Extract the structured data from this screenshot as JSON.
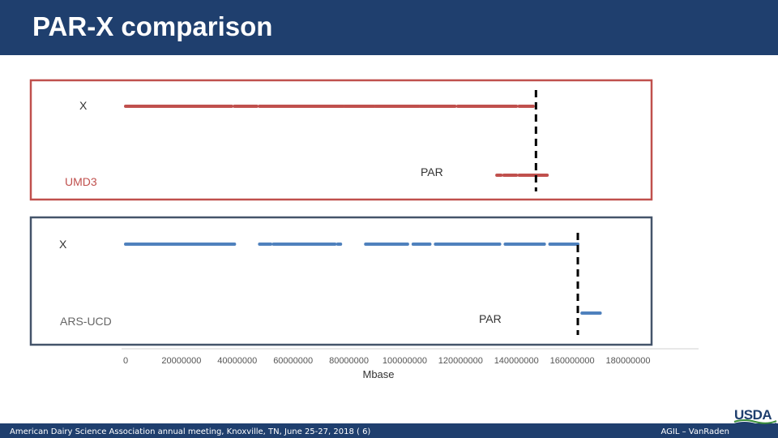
{
  "header": {
    "title": "PAR-X comparison"
  },
  "footer": {
    "left_text": "American Dairy Science Association annual meeting, Knoxville, TN, June 25-27, 2018 (   6)",
    "right_text": "AGIL – VanRaden"
  },
  "logo": {
    "text": "USDA"
  },
  "colors": {
    "umd3": "#c0504d",
    "ars": "#4f81bd",
    "title_bar": "#1f3f6e"
  },
  "chart_data": [
    {
      "type": "scatter",
      "panel_label": "UMD3",
      "x_unit_label": "",
      "series": [
        {
          "name": "X",
          "segments": [
            [
              0,
              38000000
            ],
            [
              39000000,
              47000000
            ],
            [
              48000000,
              78000000
            ],
            [
              78500000,
              89000000
            ],
            [
              89500000,
              105000000
            ],
            [
              105500000,
              118000000
            ],
            [
              119000000,
              140000000
            ],
            [
              141000000,
              146000000
            ]
          ]
        },
        {
          "name": "PAR",
          "segments": [
            [
              133000000,
              134500000
            ],
            [
              135500000,
              140000000
            ],
            [
              141000000,
              146000000
            ],
            [
              146000000,
              151000000
            ]
          ]
        }
      ],
      "boundary_x": 147000000
    },
    {
      "type": "scatter",
      "panel_label": "ARS-UCD",
      "series": [
        {
          "name": "X",
          "segments": [
            [
              0,
              39000000
            ],
            [
              48000000,
              52000000
            ],
            [
              53000000,
              75000000
            ],
            [
              76000000,
              77000000
            ],
            [
              86000000,
              101000000
            ],
            [
              103000000,
              109000000
            ],
            [
              111000000,
              134000000
            ],
            [
              136000000,
              150000000
            ],
            [
              152000000,
              162000000
            ]
          ]
        },
        {
          "name": "PAR",
          "segments": [
            [
              163500000,
              170000000
            ]
          ]
        }
      ],
      "boundary_x": 162000000
    }
  ],
  "x_axis": {
    "title": "Mbase",
    "ticks": [
      "0",
      "20000000",
      "40000000",
      "60000000",
      "80000000",
      "100000000",
      "120000000",
      "140000000",
      "160000000",
      "180000000"
    ],
    "range": [
      0,
      180000000
    ]
  }
}
